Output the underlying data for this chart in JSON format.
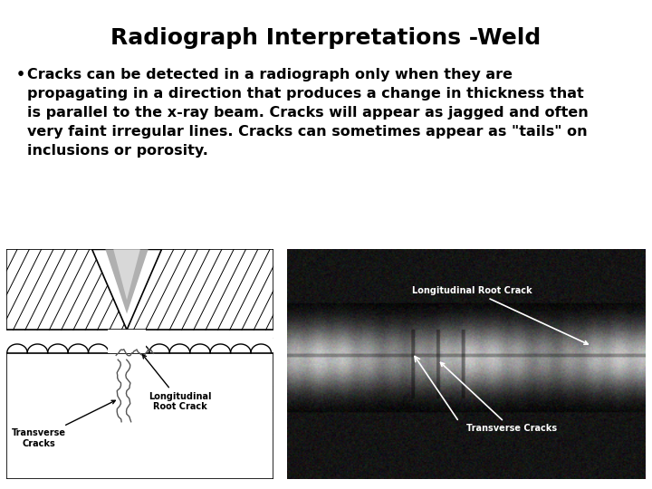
{
  "title": "Radiograph Interpretations -Weld",
  "title_fontsize": 18,
  "title_fontweight": "bold",
  "title_color": "#000000",
  "background_color": "#ffffff",
  "bullet_text_lines": [
    "Cracks can be detected in a radiograph only when they are",
    "propagating in a direction that produces a change in thickness that",
    "is parallel to the x-ray beam. Cracks will appear as jagged and often",
    "very faint irregular lines. Cracks can sometimes appear as \"tails\" on",
    "inclusions or porosity."
  ],
  "bullet_fontsize": 11.5,
  "bullet_fontweight": "bold",
  "bullet_color": "#000000"
}
